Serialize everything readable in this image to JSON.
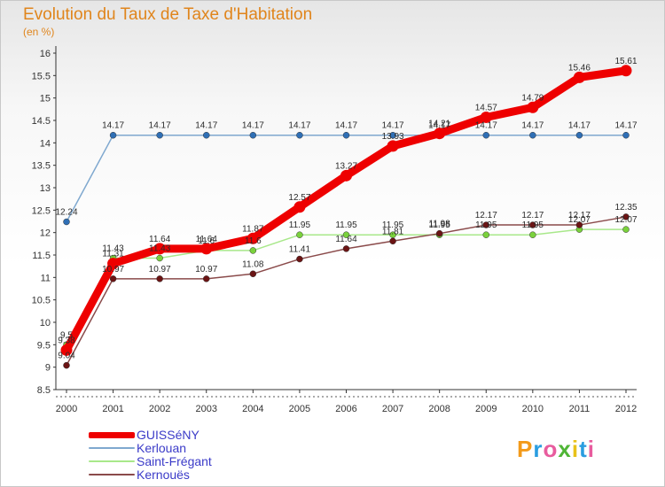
{
  "chart_data": {
    "type": "line",
    "title": "Evolution du Taux de Taxe d'Habitation",
    "subtitle": "(en %)",
    "xlabel": "",
    "ylabel": "",
    "categories": [
      "2000",
      "2001",
      "2002",
      "2003",
      "2004",
      "2005",
      "2006",
      "2007",
      "2008",
      "2009",
      "2010",
      "2011",
      "2012"
    ],
    "ylim": [
      8.5,
      16
    ],
    "yticks": [
      "8.5",
      "9",
      "9.5",
      "10",
      "10.5",
      "11",
      "11.5",
      "12",
      "12.5",
      "13",
      "13.5",
      "14",
      "14.5",
      "15",
      "15.5",
      "16"
    ],
    "grid": false,
    "legend_position": "bottom-left",
    "series": [
      {
        "name": "GUISSéNY",
        "color": "#ee0000",
        "marker": "#ee0000",
        "values": [
          9.38,
          11.31,
          11.64,
          11.64,
          11.87,
          12.57,
          13.27,
          13.93,
          14.21,
          14.57,
          14.79,
          15.46,
          15.61
        ],
        "labels": [
          "9.38",
          "11.31",
          "11.64",
          "11.64",
          "11.87",
          "12.57",
          "13.27",
          "13.93",
          "14.21",
          "14.57",
          "14.79",
          "15.46",
          "15.61"
        ]
      },
      {
        "name": "Kerlouan",
        "color": "#7fa8cf",
        "marker": "#2f6fb5",
        "values": [
          12.24,
          14.17,
          14.17,
          14.17,
          14.17,
          14.17,
          14.17,
          14.17,
          14.17,
          14.17,
          14.17,
          14.17,
          14.17
        ],
        "labels": [
          "12.24",
          "14.17",
          "14.17",
          "14.17",
          "14.17",
          "14.17",
          "14.17",
          "14.17",
          "14.17",
          "14.17",
          "14.17",
          "14.17",
          "14.17"
        ]
      },
      {
        "name": "Saint-Frégant",
        "color": "#a8e88a",
        "marker": "#7ad13c",
        "values": [
          9.5,
          11.43,
          11.43,
          11.6,
          11.6,
          11.95,
          11.95,
          11.95,
          11.95,
          11.95,
          11.95,
          12.07,
          12.07
        ],
        "labels": [
          "9.5",
          "11.43",
          "11.43",
          "11.6",
          "11.6",
          "11.95",
          "11.95",
          "11.95",
          "11.95",
          "11.95",
          "11.95",
          "12.07",
          "12.07"
        ]
      },
      {
        "name": "Kernouës",
        "color": "#8a4a4a",
        "marker": "#6b1414",
        "values": [
          9.04,
          10.97,
          10.97,
          10.97,
          11.08,
          11.41,
          11.64,
          11.81,
          11.98,
          12.17,
          12.17,
          12.17,
          12.35
        ],
        "labels": [
          "9.04",
          "10.97",
          "10.97",
          "10.97",
          "11.08",
          "11.41",
          "11.64",
          "11.81",
          "11.98",
          "12.17",
          "12.17",
          "12.17",
          "12.35"
        ]
      }
    ]
  },
  "logo": {
    "letters": [
      "P",
      "r",
      "o",
      "x",
      "i",
      "t",
      "i"
    ],
    "colors": [
      "#f39a1a",
      "#2a9de0",
      "#e85c9e",
      "#4fb536",
      "#e8c21a",
      "#2a9de0",
      "#e85c9e"
    ]
  }
}
